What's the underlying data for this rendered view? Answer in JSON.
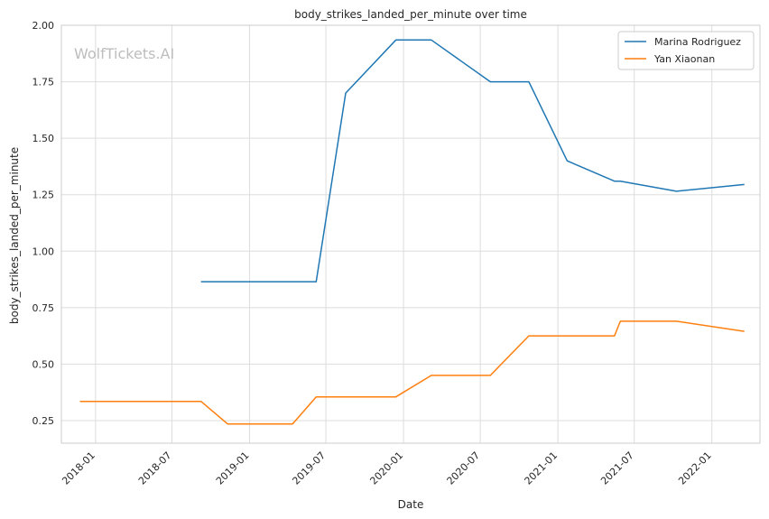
{
  "chart_data": {
    "type": "line",
    "title": "body_strikes_landed_per_minute over time",
    "xlabel": "Date",
    "ylabel": "body_strikes_landed_per_minute",
    "watermark": "WolfTickets.AI",
    "xlim": [
      "2017-10-12",
      "2022-04-25"
    ],
    "ylim": [
      0.15,
      2.0
    ],
    "x_ticks": [
      "2018-01-01",
      "2018-07-01",
      "2019-01-01",
      "2019-07-01",
      "2020-01-01",
      "2020-07-01",
      "2021-01-01",
      "2021-07-01",
      "2022-01-01"
    ],
    "x_tick_labels": [
      "2018-01",
      "2018-07",
      "2019-01",
      "2019-07",
      "2020-01",
      "2020-07",
      "2021-01",
      "2021-07",
      "2022-01"
    ],
    "y_ticks": [
      0.25,
      0.5,
      0.75,
      1.0,
      1.25,
      1.5,
      1.75,
      2.0
    ],
    "y_tick_labels": [
      "0.25",
      "0.50",
      "0.75",
      "1.00",
      "1.25",
      "1.50",
      "1.75",
      "2.00"
    ],
    "grid": true,
    "legend_position": "top-right",
    "series": [
      {
        "name": "Marina Rodriguez",
        "color": "#1f77b4",
        "points": [
          [
            "2018-09-08",
            0.865
          ],
          [
            "2019-06-08",
            0.865
          ],
          [
            "2019-08-17",
            1.7
          ],
          [
            "2019-12-14",
            1.935
          ],
          [
            "2020-03-07",
            1.935
          ],
          [
            "2020-07-25",
            1.75
          ],
          [
            "2020-10-24",
            1.75
          ],
          [
            "2021-01-23",
            1.4
          ],
          [
            "2021-05-15",
            1.31
          ],
          [
            "2021-05-29",
            1.31
          ],
          [
            "2021-10-09",
            1.265
          ],
          [
            "2022-03-19",
            1.295
          ]
        ]
      },
      {
        "name": "Yan Xiaonan",
        "color": "#ff7f0e",
        "points": [
          [
            "2017-11-25",
            0.335
          ],
          [
            "2018-09-08",
            0.335
          ],
          [
            "2018-11-10",
            0.235
          ],
          [
            "2019-04-13",
            0.235
          ],
          [
            "2019-06-08",
            0.355
          ],
          [
            "2019-12-14",
            0.355
          ],
          [
            "2020-03-07",
            0.45
          ],
          [
            "2020-07-25",
            0.45
          ],
          [
            "2020-10-24",
            0.625
          ],
          [
            "2021-05-15",
            0.625
          ],
          [
            "2021-05-29",
            0.69
          ],
          [
            "2021-10-09",
            0.69
          ],
          [
            "2022-03-19",
            0.645
          ]
        ]
      }
    ]
  }
}
